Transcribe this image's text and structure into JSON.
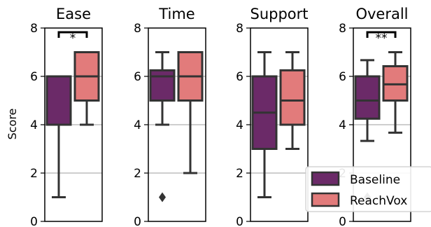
{
  "chart_data": {
    "type": "box",
    "ylabel": "Score",
    "ylim": [
      0,
      8
    ],
    "yticks": [
      0,
      2,
      4,
      6,
      8
    ],
    "grid_y": true,
    "series_names": [
      "Baseline",
      "ReachVox"
    ],
    "colors": {
      "Baseline": "#6b2a68",
      "ReachVox": "#e27b7b",
      "edge": "#333333",
      "grid": "#b0b0b0"
    },
    "legend_placement": "lower-right",
    "panels": [
      {
        "title": "Ease",
        "significance": "*",
        "boxes": [
          {
            "series": "Baseline",
            "q1": 4,
            "median": 6,
            "q3": 6,
            "whisker_low": 1,
            "whisker_high": 6,
            "outliers": []
          },
          {
            "series": "ReachVox",
            "q1": 5,
            "median": 6,
            "q3": 7,
            "whisker_low": 4,
            "whisker_high": 7,
            "outliers": []
          }
        ]
      },
      {
        "title": "Time",
        "significance": "",
        "boxes": [
          {
            "series": "Baseline",
            "q1": 5,
            "median": 6,
            "q3": 6.25,
            "whisker_low": 4,
            "whisker_high": 7,
            "outliers": [
              1
            ]
          },
          {
            "series": "ReachVox",
            "q1": 5,
            "median": 6,
            "q3": 7,
            "whisker_low": 2,
            "whisker_high": 7,
            "outliers": []
          }
        ]
      },
      {
        "title": "Support",
        "significance": "",
        "boxes": [
          {
            "series": "Baseline",
            "q1": 3,
            "median": 4.5,
            "q3": 6,
            "whisker_low": 1,
            "whisker_high": 7,
            "outliers": []
          },
          {
            "series": "ReachVox",
            "q1": 4,
            "median": 5,
            "q3": 6.25,
            "whisker_low": 3,
            "whisker_high": 7,
            "outliers": []
          }
        ]
      },
      {
        "title": "Overall",
        "significance": "**",
        "boxes": [
          {
            "series": "Baseline",
            "q1": 4.25,
            "median": 5,
            "q3": 6,
            "whisker_low": 3.33,
            "whisker_high": 6.67,
            "outliers": [
              1
            ]
          },
          {
            "series": "ReachVox",
            "q1": 5,
            "median": 5.67,
            "q3": 6.42,
            "whisker_low": 3.67,
            "whisker_high": 7,
            "outliers": []
          }
        ]
      }
    ]
  }
}
